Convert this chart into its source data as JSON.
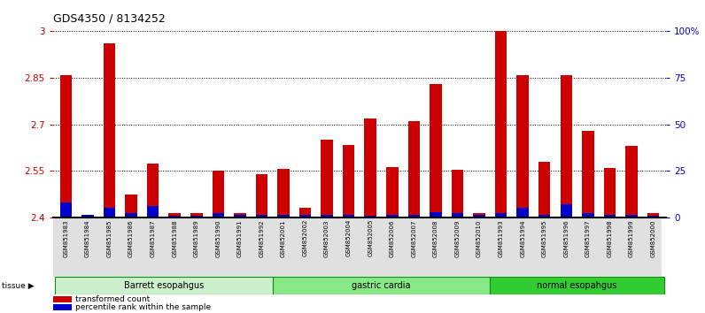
{
  "title": "GDS4350 / 8134252",
  "samples": [
    "GSM851983",
    "GSM851984",
    "GSM851985",
    "GSM851986",
    "GSM851987",
    "GSM851988",
    "GSM851989",
    "GSM851990",
    "GSM851991",
    "GSM851992",
    "GSM852001",
    "GSM852002",
    "GSM852003",
    "GSM852004",
    "GSM852005",
    "GSM852006",
    "GSM852007",
    "GSM852008",
    "GSM852009",
    "GSM852010",
    "GSM851993",
    "GSM851994",
    "GSM851995",
    "GSM851996",
    "GSM851997",
    "GSM851998",
    "GSM851999",
    "GSM852000"
  ],
  "red_values": [
    2.86,
    2.401,
    2.96,
    2.475,
    2.575,
    2.413,
    2.413,
    2.55,
    2.415,
    2.54,
    2.558,
    2.43,
    2.65,
    2.635,
    2.72,
    2.562,
    2.71,
    2.83,
    2.555,
    2.413,
    3.0,
    2.86,
    2.58,
    2.858,
    2.68,
    2.56,
    2.63,
    2.415
  ],
  "blue_values": [
    0.048,
    0.008,
    0.03,
    0.013,
    0.038,
    0.005,
    0.005,
    0.013,
    0.01,
    0.008,
    0.01,
    0.008,
    0.008,
    0.01,
    0.005,
    0.01,
    0.01,
    0.018,
    0.013,
    0.008,
    0.013,
    0.03,
    0.01,
    0.042,
    0.013,
    0.01,
    0.008,
    0.005
  ],
  "groups": [
    {
      "label": "Barrett esopahgus",
      "start": 0,
      "end": 10,
      "color": "#ccf0cc"
    },
    {
      "label": "gastric cardia",
      "start": 10,
      "end": 20,
      "color": "#88e888"
    },
    {
      "label": "normal esopahgus",
      "start": 20,
      "end": 28,
      "color": "#33cc33"
    }
  ],
  "ymin": 2.4,
  "ymax": 3.0,
  "yticks": [
    2.4,
    2.55,
    2.7,
    2.85,
    3.0
  ],
  "ytick_labels": [
    "2.4",
    "2.55",
    "2.7",
    "2.85",
    "3"
  ],
  "right_yticks": [
    0,
    25,
    50,
    75,
    100
  ],
  "right_ytick_labels": [
    "0",
    "25",
    "50",
    "75",
    "100%"
  ],
  "bar_color_red": "#cc0000",
  "bar_color_blue": "#0000cc",
  "tick_label_color_left": "#cc0000",
  "tick_label_color_right": "#0000cc",
  "title_fontsize": 9,
  "bar_width": 0.55
}
